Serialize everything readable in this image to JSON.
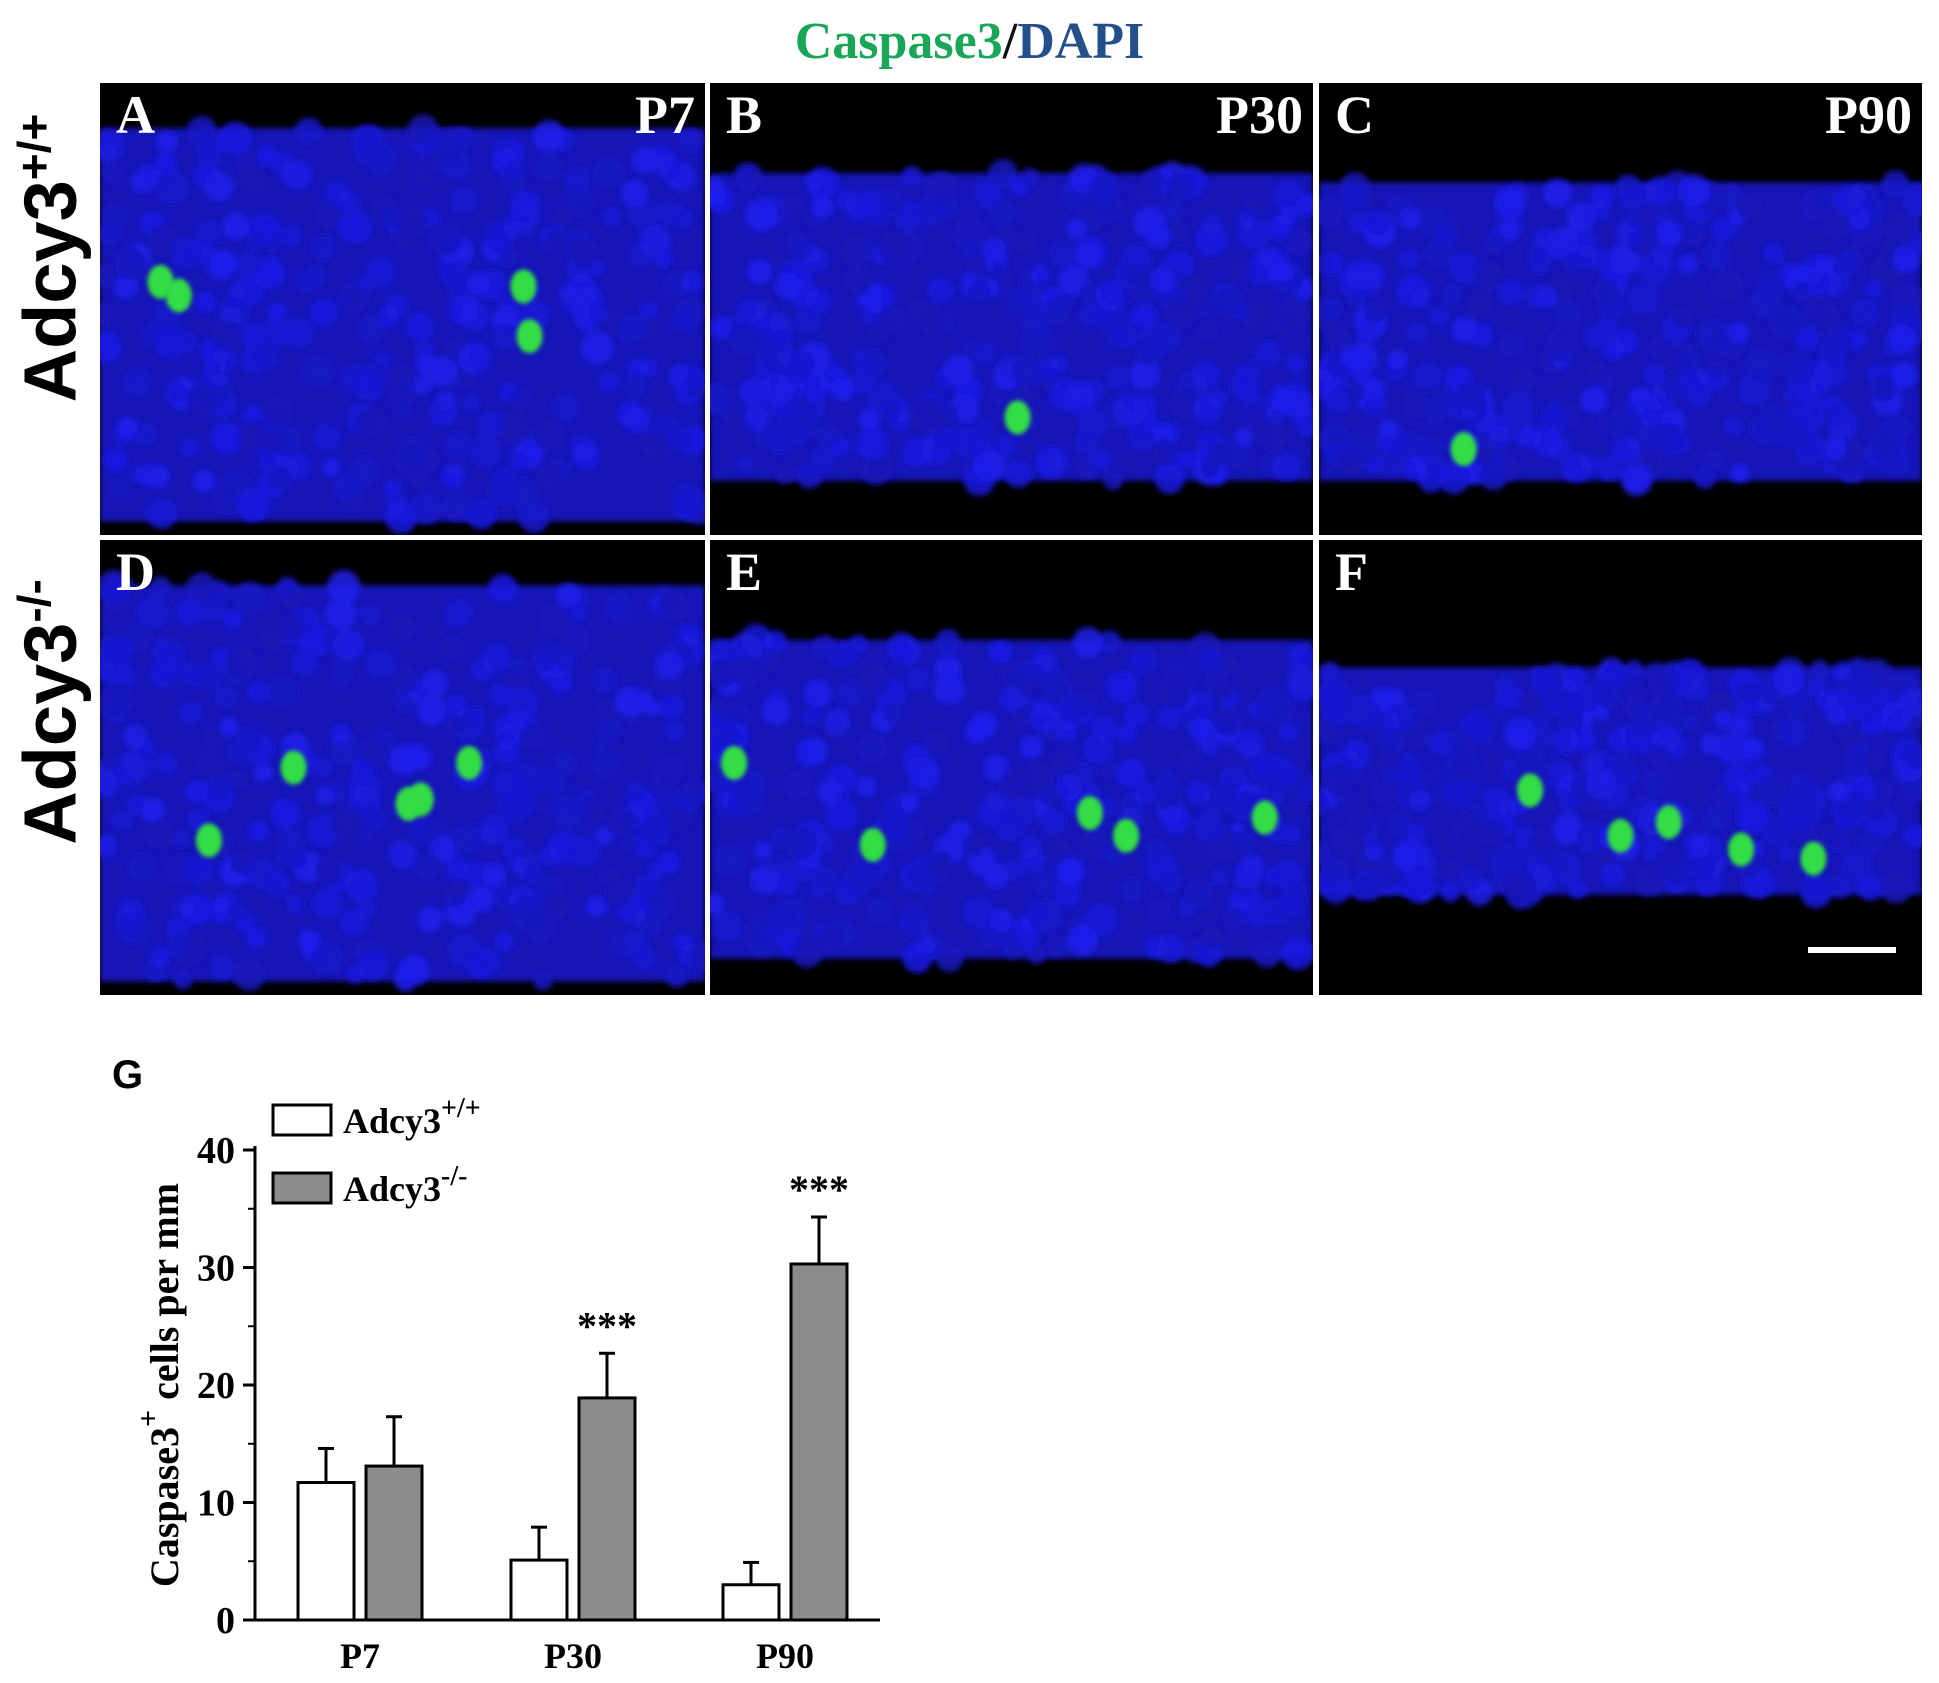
{
  "figure": {
    "title_channel1": "Caspase3",
    "title_separator": "/",
    "title_channel2": "DAPI",
    "title_color1": "#1aa657",
    "title_color2": "#24508a",
    "row_labels": [
      {
        "base": "Adcy3",
        "sup": "+/+"
      },
      {
        "base": "Adcy3",
        "sup": "-/-"
      }
    ],
    "panels": [
      {
        "letter": "A",
        "age": "P7"
      },
      {
        "letter": "B",
        "age": "P30"
      },
      {
        "letter": "C",
        "age": "P90"
      },
      {
        "letter": "D",
        "age": ""
      },
      {
        "letter": "E",
        "age": ""
      },
      {
        "letter": "F",
        "age": ""
      }
    ],
    "micrograph_colors": {
      "background": "#000000",
      "dapi": "#1a1ad6",
      "caspase": "#33dd44"
    }
  },
  "chart_panel_letter": "G",
  "chart_data": {
    "type": "bar",
    "categories": [
      "P7",
      "P30",
      "P90"
    ],
    "series": [
      {
        "name": "Adcy3+/+",
        "name_base": "Adcy3",
        "name_sup": "+/+",
        "color": "#ffffff",
        "values": [
          11.7,
          5.1,
          3.0
        ],
        "errors": [
          2.9,
          2.8,
          1.9
        ]
      },
      {
        "name": "Adcy3-/-",
        "name_base": "Adcy3",
        "name_sup": "-/-",
        "color": "#8c8c8c",
        "values": [
          13.1,
          18.9,
          30.3
        ],
        "errors": [
          4.2,
          3.8,
          4.0
        ]
      }
    ],
    "significance": [
      "",
      "***",
      "***"
    ],
    "ylabel_base": "Caspase3",
    "ylabel_sup": "+",
    "ylabel_rest": " cells per mm",
    "xlabel": "",
    "ylim": [
      0,
      40
    ],
    "yticks": [
      0,
      10,
      20,
      30,
      40
    ],
    "legend_position": "top-left",
    "grid": false
  }
}
